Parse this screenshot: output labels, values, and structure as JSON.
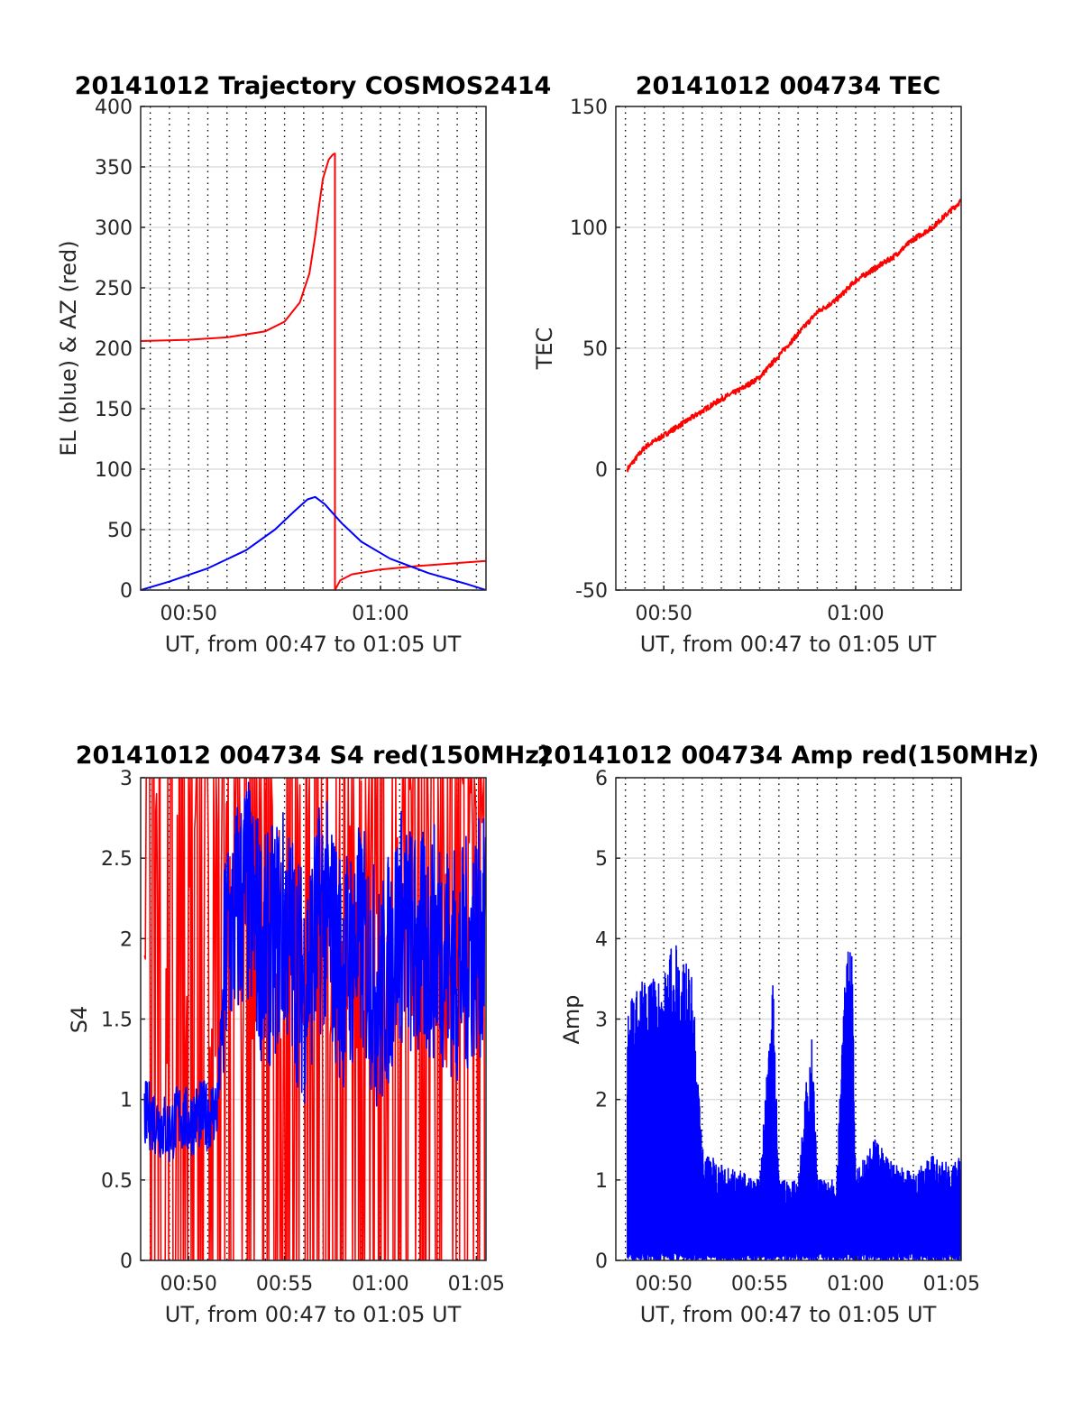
{
  "chart_data": [
    {
      "type": "line",
      "title": "20141012 Trajectory COSMOS2414",
      "xlabel": "UT, from 00:47 to 01:05 UT",
      "ylabel": "EL (blue) & AZ (red)",
      "x_unit": "minutes after 00:00 UT",
      "xlim": [
        47.5,
        65.5
      ],
      "ylim": [
        0,
        400
      ],
      "xticks": [
        50,
        60
      ],
      "xtick_labels": [
        "00:50",
        "01:00"
      ],
      "yticks": [
        0,
        50,
        100,
        150,
        200,
        250,
        300,
        350,
        400
      ],
      "grid": "horizontal solid, vertical dotted",
      "series": [
        {
          "name": "AZ",
          "color": "#ff0000",
          "x": [
            47.5,
            50,
            52,
            54,
            55,
            55.8,
            56.3,
            56.6,
            56.8,
            57,
            57.3,
            57.5,
            57.6,
            57.63,
            57.63,
            57.9,
            58.5,
            60,
            62,
            65.5
          ],
          "y": [
            206,
            207,
            209,
            214,
            222,
            238,
            262,
            293,
            318,
            340,
            356,
            360,
            361,
            361,
            0,
            8,
            13,
            17,
            20,
            24
          ]
        },
        {
          "name": "EL",
          "color": "#0000ff",
          "x": [
            47.5,
            49,
            51,
            53,
            54.5,
            55.5,
            56.2,
            56.6,
            57.1,
            58,
            59,
            60.5,
            62.5,
            64.5,
            65.5
          ],
          "y": [
            0,
            7,
            18,
            33,
            50,
            65,
            75,
            77,
            71,
            55,
            40,
            26,
            14,
            5,
            0
          ]
        }
      ]
    },
    {
      "type": "line",
      "title": "20141012 004734 TEC",
      "xlabel": "UT, from 00:47 to 01:05 UT",
      "ylabel": "TEC",
      "x_unit": "minutes after 00:00 UT",
      "xlim": [
        47.5,
        65.5
      ],
      "ylim": [
        -50,
        150
      ],
      "xticks": [
        50,
        60
      ],
      "xtick_labels": [
        "00:50",
        "01:00"
      ],
      "yticks": [
        -50,
        0,
        50,
        100,
        150
      ],
      "grid": "horizontal solid, vertical dotted",
      "series": [
        {
          "name": "TEC",
          "color": "#ff0000",
          "x": [
            48.1,
            49,
            50,
            51,
            52,
            53,
            54,
            55,
            56,
            57,
            58,
            59,
            60,
            61,
            62,
            63,
            64,
            65.5
          ],
          "y": [
            0,
            9,
            14,
            19,
            24,
            29,
            33,
            38,
            47,
            56,
            65,
            70,
            78,
            83,
            88,
            95,
            100,
            111
          ]
        }
      ]
    },
    {
      "type": "line",
      "title": "20141012 004734 S4 red(150MHz)",
      "xlabel": "UT, from 00:47 to 01:05 UT",
      "ylabel": "S4",
      "x_unit": "minutes after 00:00 UT",
      "xlim": [
        47.5,
        65.5
      ],
      "ylim": [
        0,
        3
      ],
      "xticks": [
        50,
        55,
        60,
        65
      ],
      "xtick_labels": [
        "00:50",
        "00:55",
        "01:00",
        "01:05"
      ],
      "yticks": [
        0,
        0.5,
        1,
        1.5,
        2,
        2.5,
        3
      ],
      "grid": "horizontal solid, vertical dotted",
      "series": [
        {
          "name": "red",
          "color": "#ff0000",
          "x": [
            48,
            49,
            50,
            51,
            52,
            53,
            54,
            55,
            56,
            57,
            58,
            59,
            60,
            61,
            62,
            63,
            64,
            65
          ],
          "y": [
            3,
            0,
            3,
            0,
            3,
            0,
            3,
            0,
            3,
            0,
            3,
            0,
            3,
            0,
            3,
            0,
            3,
            1.6
          ]
        },
        {
          "name": "blue",
          "color": "#0000ff",
          "x": [
            48,
            48.5,
            49,
            49.5,
            50,
            50.5,
            51,
            51.5,
            52,
            53,
            54,
            55,
            56,
            57,
            58,
            59,
            60,
            61,
            62,
            63,
            64,
            65
          ],
          "y": [
            0.9,
            0.85,
            0.8,
            0.9,
            0.85,
            0.9,
            0.9,
            0.95,
            2.0,
            2.3,
            1.9,
            2.1,
            1.7,
            2.2,
            1.8,
            2.0,
            1.6,
            2.1,
            1.9,
            2.0,
            1.8,
            2.0
          ]
        }
      ]
    },
    {
      "type": "line",
      "title": "20141012 004734 Amp red(150MHz)",
      "xlabel": "UT, from 00:47 to 01:05 UT",
      "ylabel": "Amp",
      "x_unit": "minutes after 00:00 UT",
      "xlim": [
        47.5,
        65.5
      ],
      "ylim": [
        0,
        6
      ],
      "xticks": [
        50,
        55,
        60,
        65
      ],
      "xtick_labels": [
        "00:50",
        "00:55",
        "01:00",
        "01:05"
      ],
      "yticks": [
        0,
        1,
        2,
        3,
        4,
        5,
        6
      ],
      "grid": "horizontal solid, vertical dotted",
      "series": [
        {
          "name": "Amp",
          "color": "#0000ff",
          "x": [
            48.1,
            48.5,
            49,
            49.5,
            50,
            50.5,
            51,
            51.5,
            52,
            53,
            54,
            55,
            55.7,
            56,
            57,
            57.7,
            58,
            59,
            59.5,
            59.8,
            60,
            61,
            62,
            63,
            64,
            65,
            65.5
          ],
          "y": [
            3.2,
            3.3,
            3.6,
            3.5,
            3.6,
            4.0,
            3.8,
            3.5,
            1.4,
            1.2,
            1.1,
            1.0,
            3.5,
            1.0,
            1.0,
            3.0,
            1.0,
            1.0,
            3.9,
            4.0,
            1.1,
            1.5,
            1.2,
            1.1,
            1.3,
            1.2,
            1.3
          ]
        }
      ]
    }
  ]
}
